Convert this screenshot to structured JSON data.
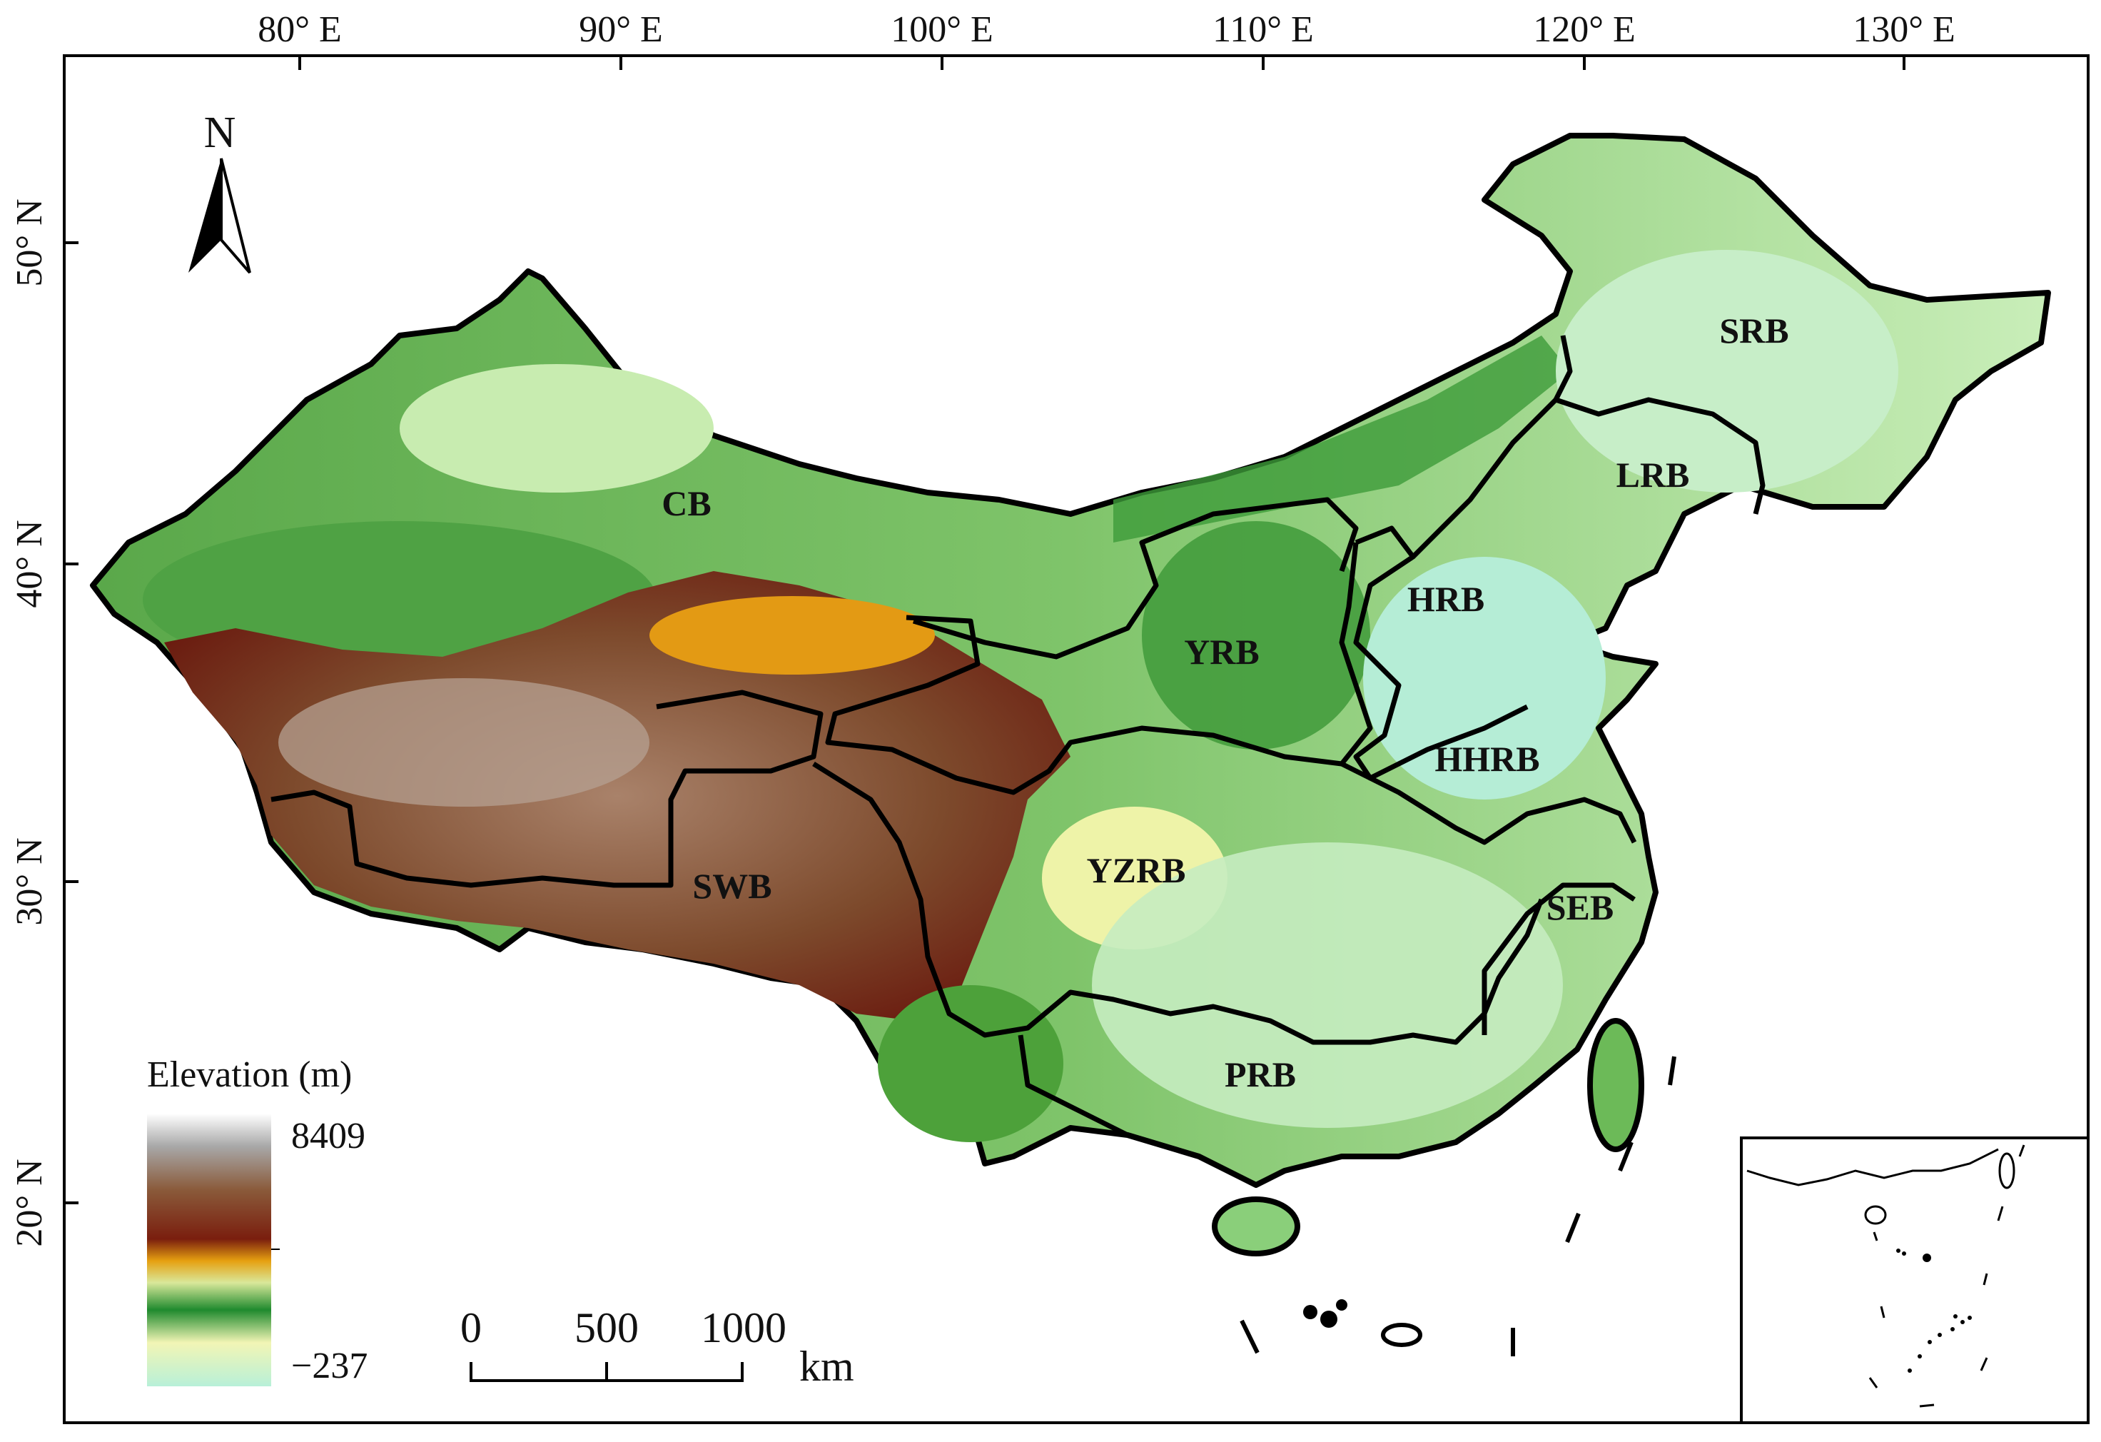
{
  "map": {
    "longitude_ticks": [
      "80° E",
      "90° E",
      "100° E",
      "110° E",
      "120° E",
      "130° E"
    ],
    "latitude_ticks": [
      "50° N",
      "40° N",
      "30° N",
      "20° N"
    ],
    "basins": [
      {
        "id": "cb",
        "label": "CB"
      },
      {
        "id": "srb",
        "label": "SRB"
      },
      {
        "id": "lrb",
        "label": "LRB"
      },
      {
        "id": "hrb",
        "label": "HRB"
      },
      {
        "id": "yrb",
        "label": "YRB"
      },
      {
        "id": "hhrb",
        "label": "HHRB"
      },
      {
        "id": "yzrb",
        "label": "YZRB"
      },
      {
        "id": "swb",
        "label": "SWB"
      },
      {
        "id": "seb",
        "label": "SEB"
      },
      {
        "id": "prb",
        "label": "PRB"
      }
    ],
    "north_arrow": {
      "label": "N",
      "icon": "north-arrow-icon"
    }
  },
  "legend": {
    "title": "Elevation (m)",
    "max_label": "8409",
    "min_label": "−237",
    "colors": [
      "#ffffff",
      "#9a9a9a",
      "#8a5a3a",
      "#7a1e0e",
      "#e6a010",
      "#1f8a2e",
      "#d9e89a",
      "#b8f0d8"
    ]
  },
  "scale_bar": {
    "labels": [
      "0",
      "500",
      "1000"
    ],
    "unit": "km"
  }
}
